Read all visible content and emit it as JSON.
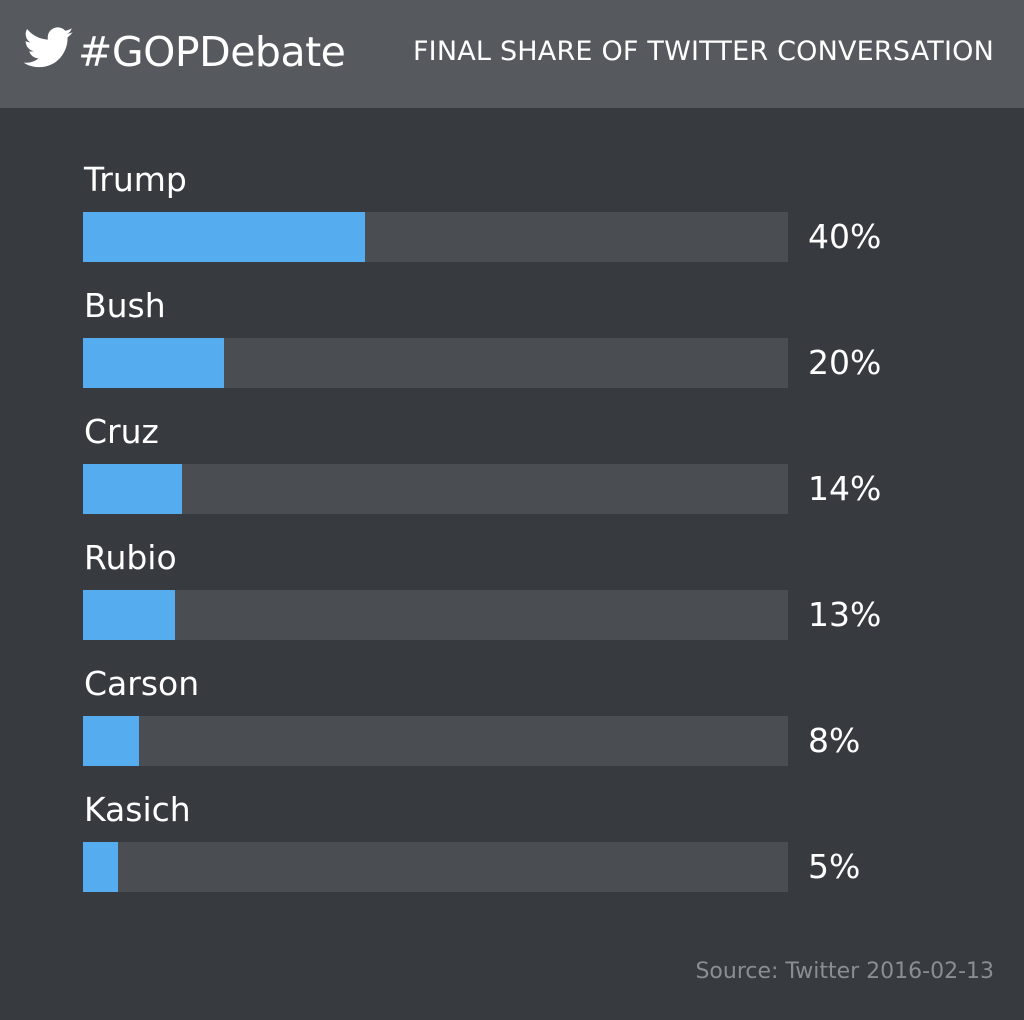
{
  "header": {
    "hashtag": "#GOPDebate",
    "title": "FINAL SHARE OF TWITTER CONVERSATION",
    "logo_icon": "twitter-bird-icon"
  },
  "colors": {
    "bar_fill": "#55acee",
    "bar_track": "#4a4e53",
    "background": "#373b40",
    "header_background": "#565a5e"
  },
  "chart_data": {
    "type": "bar",
    "orientation": "horizontal",
    "categories": [
      "Trump",
      "Bush",
      "Cruz",
      "Rubio",
      "Carson",
      "Kasich"
    ],
    "values": [
      40,
      20,
      14,
      13,
      8,
      5
    ],
    "value_labels": [
      "40%",
      "20%",
      "14%",
      "13%",
      "8%",
      "5%"
    ],
    "xlim": [
      0,
      100
    ],
    "grid": false
  },
  "footer": {
    "source": "Source: Twitter 2016-02-13"
  }
}
